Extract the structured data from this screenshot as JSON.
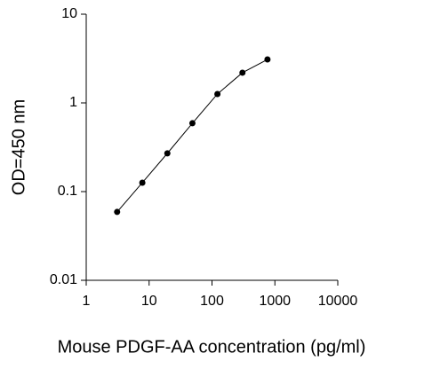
{
  "chart_data": {
    "type": "line",
    "x_label": "Mouse PDGF-AA concentration (pg/ml)",
    "y_label": "OD=450 nm",
    "x": [
      3.1,
      7.8,
      19.5,
      48.8,
      122,
      305,
      762
    ],
    "series": [
      {
        "color": "#000000",
        "values": [
          0.059,
          0.126,
          0.27,
          0.59,
          1.26,
          2.19,
          3.09
        ]
      }
    ],
    "xlim": [
      1,
      10000
    ],
    "xticks": [
      1,
      10,
      100,
      1000,
      10000
    ],
    "ylim": [
      0.01,
      10
    ],
    "yticks": [
      0.01,
      0.1,
      1,
      10
    ],
    "xscale": "log",
    "yscale": "log",
    "grid": false
  }
}
